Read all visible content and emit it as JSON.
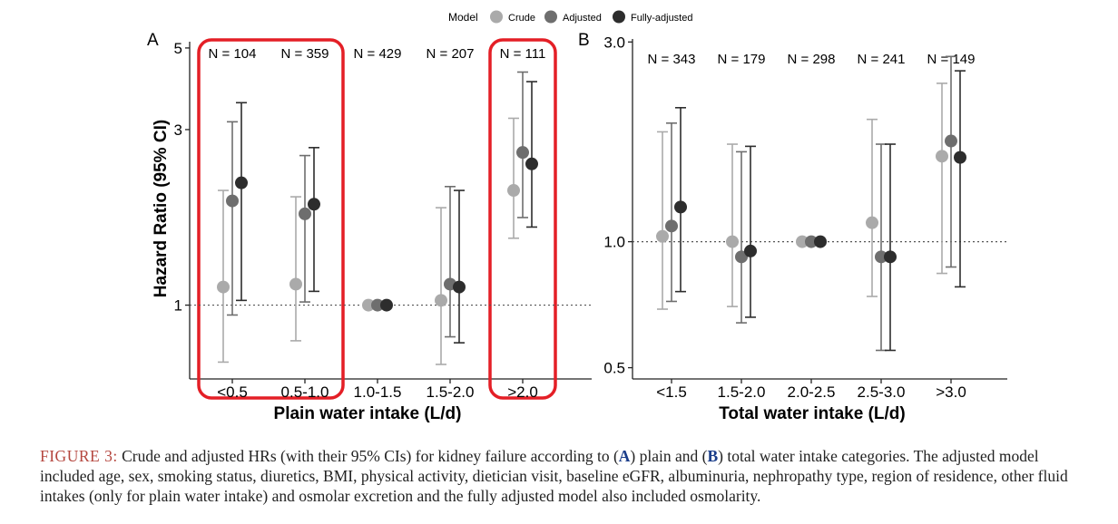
{
  "legend": {
    "title": "Model",
    "entries": [
      {
        "name": "Crude",
        "color": "#aaaaaa"
      },
      {
        "name": "Adjusted",
        "color": "#6e6e6e"
      },
      {
        "name": "Fully-adjusted",
        "color": "#2d2d2d"
      }
    ]
  },
  "highlight_color": "#e41f26",
  "ylabel_shared": "Hazard Ratio (95% CI)",
  "chart_data": [
    {
      "panel": "A",
      "type": "scatter",
      "subtype": "forest-plot-log-scale",
      "xlabel": "Plain water intake (L/d)",
      "ylabel": "Hazard Ratio (95% CI)",
      "yscale": "log",
      "ylim": [
        0.63,
        5.2
      ],
      "yticks": [
        1,
        3,
        5
      ],
      "ytick_labels": [
        "1",
        "3",
        "5"
      ],
      "reference_line": 1,
      "categories": [
        "<0.5",
        "0.5-1.0",
        "1.0-1.5",
        "1.5-2.0",
        ">2.0"
      ],
      "n_labels": [
        "N = 104",
        "N = 359",
        "N = 429",
        "N = 207",
        "N = 111"
      ],
      "highlighted_categories": [
        "<0.5",
        "0.5-1.0",
        ">2.0"
      ],
      "series": [
        {
          "name": "Crude",
          "hr": [
            1.12,
            1.14,
            1.0,
            1.03,
            2.05
          ],
          "lower": [
            0.7,
            0.8,
            1.0,
            0.69,
            1.52
          ],
          "upper": [
            2.05,
            1.97,
            1.0,
            1.84,
            3.22
          ]
        },
        {
          "name": "Adjusted",
          "hr": [
            1.92,
            1.77,
            1.0,
            1.14,
            2.6
          ],
          "lower": [
            0.94,
            1.02,
            1.0,
            0.82,
            1.73
          ],
          "upper": [
            3.15,
            2.55,
            1.0,
            2.1,
            4.3
          ]
        },
        {
          "name": "Fully-adjusted",
          "hr": [
            2.15,
            1.88,
            1.0,
            1.12,
            2.42
          ],
          "lower": [
            1.03,
            1.09,
            1.0,
            0.79,
            1.63
          ],
          "upper": [
            3.55,
            2.68,
            1.0,
            2.05,
            4.05
          ]
        }
      ]
    },
    {
      "panel": "B",
      "type": "scatter",
      "subtype": "forest-plot-log-scale",
      "xlabel": "Total water intake (L/d)",
      "ylabel": "",
      "yscale": "log",
      "ylim": [
        0.47,
        3.05
      ],
      "yticks": [
        0.5,
        1.0,
        3.0
      ],
      "ytick_labels": [
        "0.5",
        "1.0",
        "3.0"
      ],
      "reference_line": 1.0,
      "categories": [
        "<1.5",
        "1.5-2.0",
        "2.0-2.5",
        "2.5-3.0",
        ">3.0"
      ],
      "n_labels": [
        "N = 343",
        "N = 179",
        "N = 298",
        "N = 241",
        "N = 149"
      ],
      "series": [
        {
          "name": "Crude",
          "hr": [
            1.03,
            1.0,
            1.0,
            1.11,
            1.6
          ],
          "lower": [
            0.69,
            0.7,
            1.0,
            0.74,
            0.84
          ],
          "upper": [
            1.83,
            1.71,
            1.0,
            1.96,
            2.39
          ]
        },
        {
          "name": "Adjusted",
          "hr": [
            1.09,
            0.92,
            1.0,
            0.92,
            1.74
          ],
          "lower": [
            0.72,
            0.64,
            1.0,
            0.55,
            0.87
          ],
          "upper": [
            1.92,
            1.64,
            1.0,
            1.71,
            2.77
          ]
        },
        {
          "name": "Fully-adjusted",
          "hr": [
            1.21,
            0.95,
            1.0,
            0.92,
            1.59
          ],
          "lower": [
            0.76,
            0.66,
            1.0,
            0.55,
            0.78
          ],
          "upper": [
            2.09,
            1.69,
            1.0,
            1.71,
            2.56
          ]
        }
      ]
    }
  ],
  "caption": {
    "label": "FIGURE 3:",
    "text_1": " Crude and adjusted HRs (with their 95% CIs) for kidney failure according to (",
    "bold_a": "A",
    "text_2": ") plain and (",
    "bold_b": "B",
    "text_3": ") total water intake categories. The adjusted model included age, sex, smoking status, diuretics, BMI, physical activity, dietician visit, baseline eGFR, albuminuria, nephropathy type, region of residence, other fluid intakes (only for plain water intake) and osmolar excretion and the fully adjusted model also included osmolarity."
  }
}
